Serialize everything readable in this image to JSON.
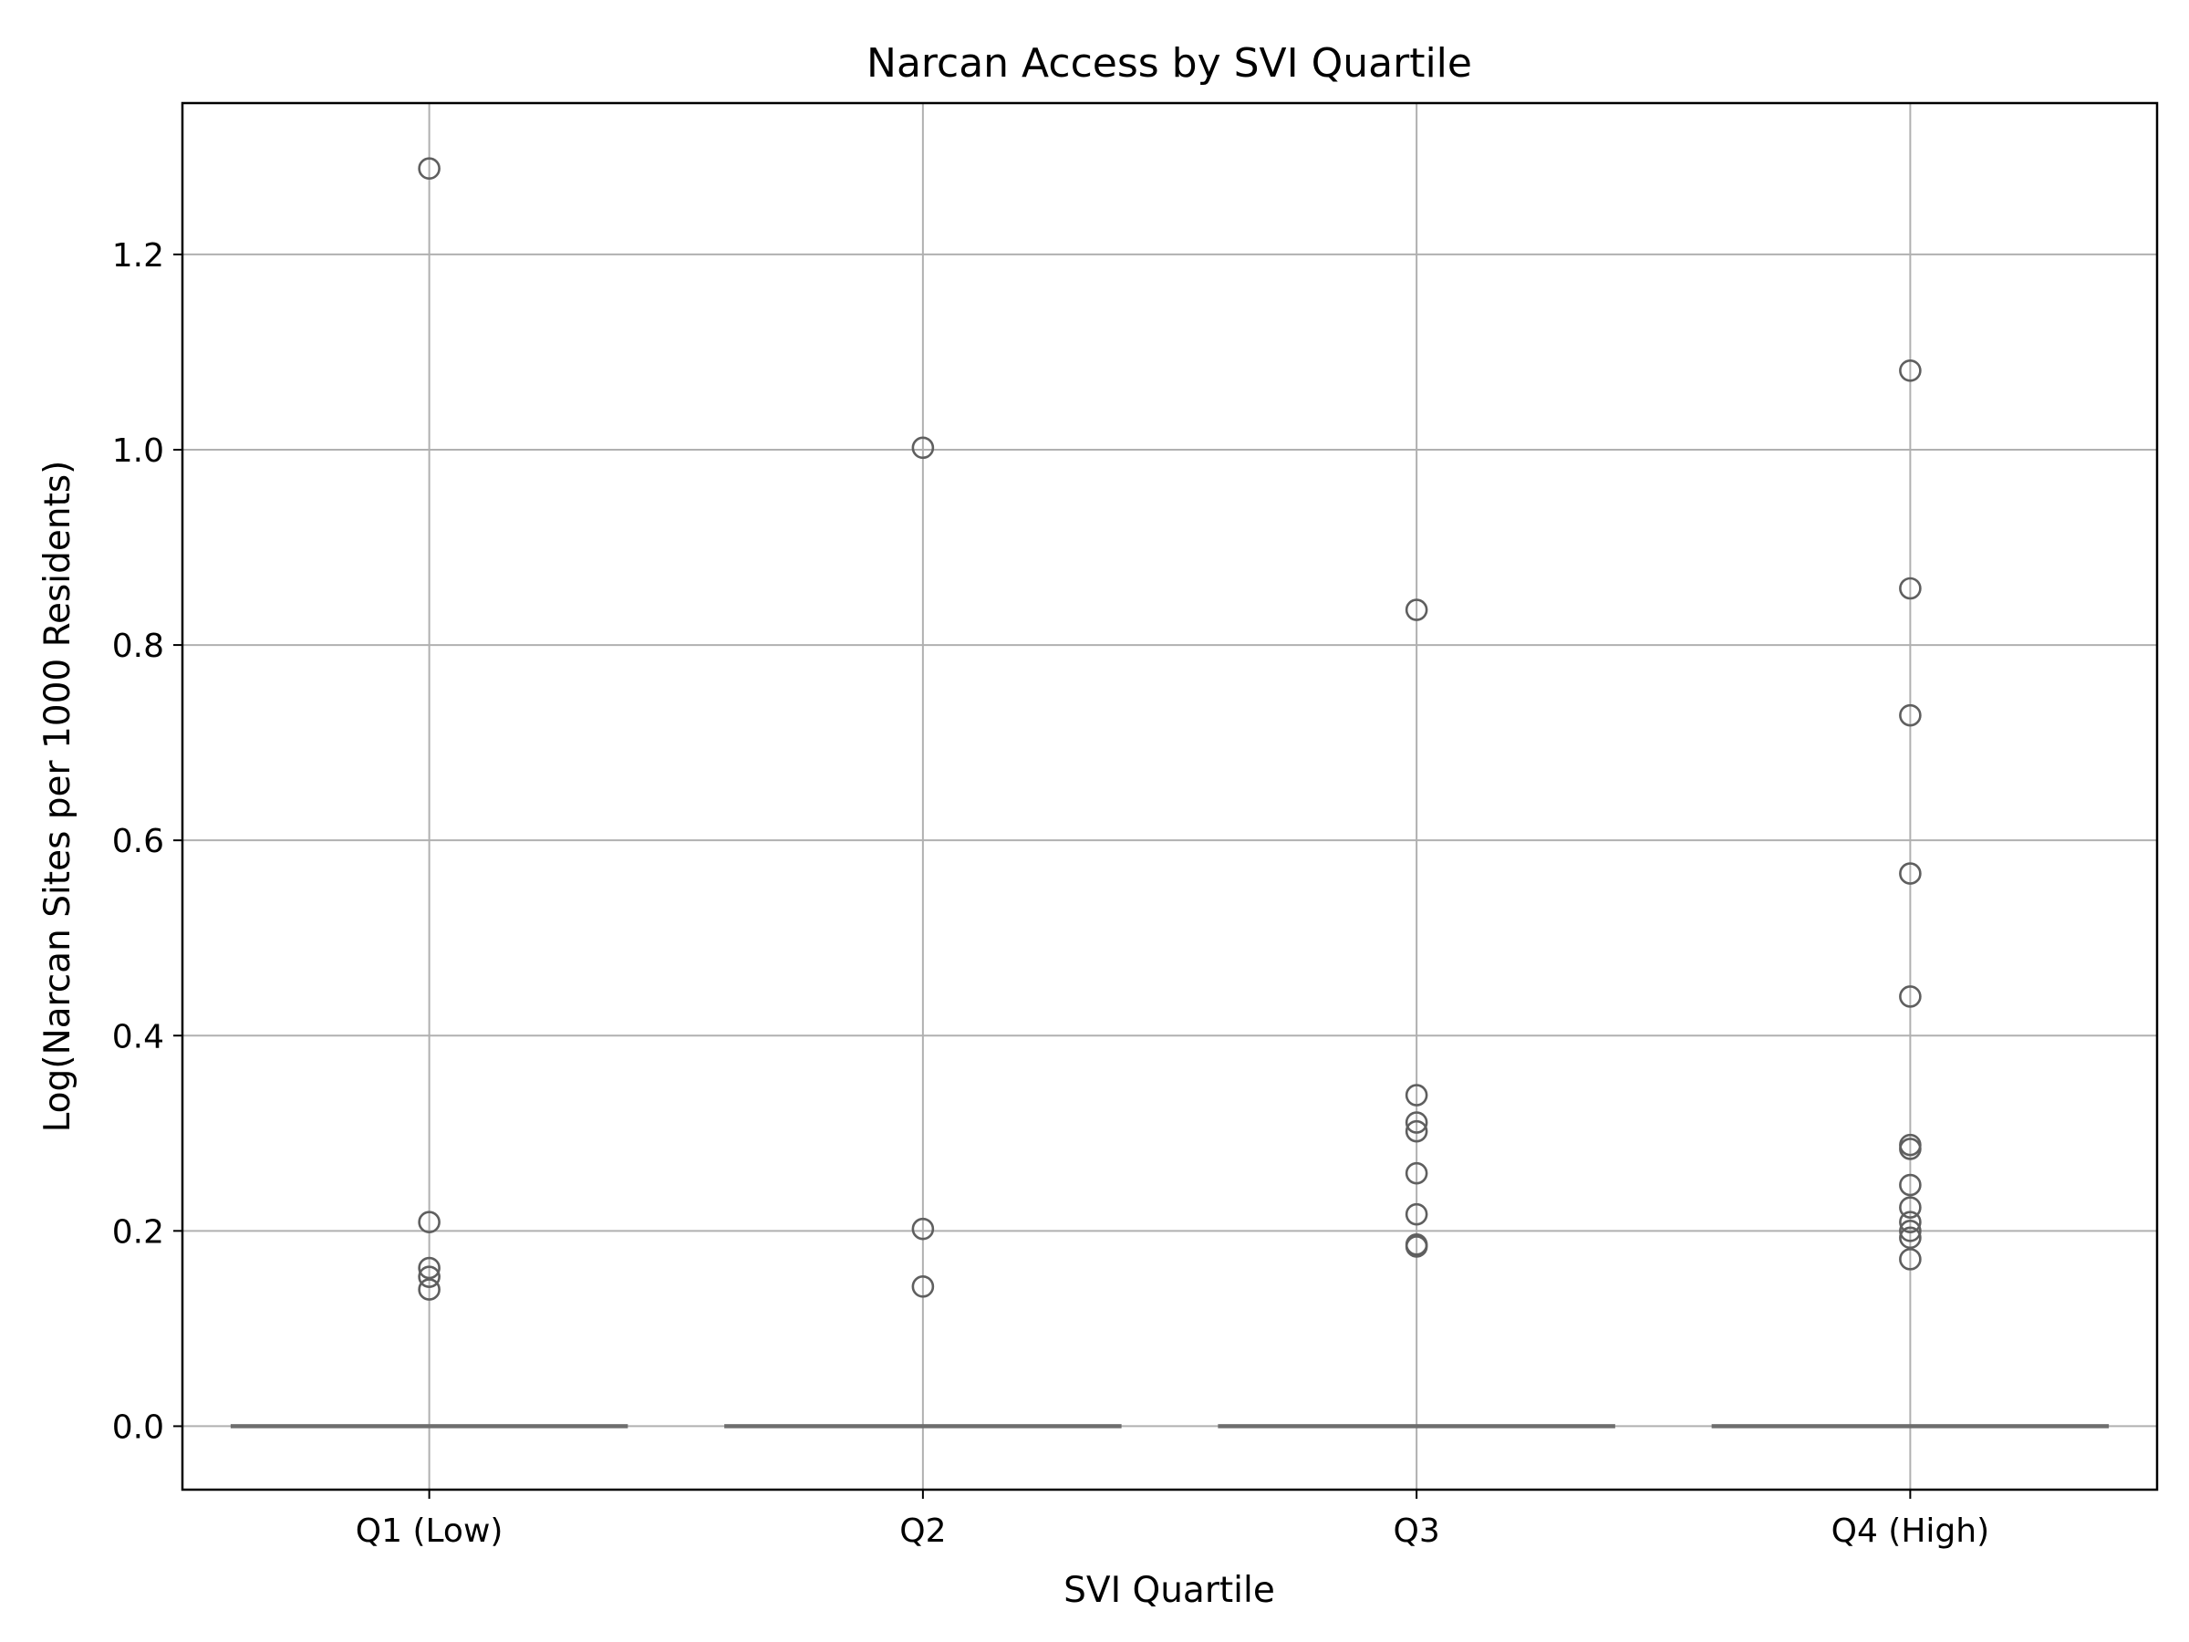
{
  "chart_data": {
    "type": "box",
    "title": "Narcan Access by SVI Quartile",
    "xlabel": "SVI Quartile",
    "ylabel": "Log(Narcan Sites per 1000 Residents)",
    "categories": [
      "Q1 (Low)",
      "Q2",
      "Q3",
      "Q4 (High)"
    ],
    "ylim": [
      -0.065,
      1.355
    ],
    "yticks": [
      0.0,
      0.2,
      0.4,
      0.6,
      0.8,
      1.0,
      1.2
    ],
    "ytick_labels": [
      "0.0",
      "0.2",
      "0.4",
      "0.6",
      "0.8",
      "1.0",
      "1.2"
    ],
    "grid": true,
    "boxes": [
      {
        "category": "Q1 (Low)",
        "q1": 0.0,
        "median": 0.0,
        "q3": 0.0,
        "whisker_low": 0.0,
        "whisker_high": 0.0
      },
      {
        "category": "Q2",
        "q1": 0.0,
        "median": 0.0,
        "q3": 0.0,
        "whisker_low": 0.0,
        "whisker_high": 0.0
      },
      {
        "category": "Q3",
        "q1": 0.0,
        "median": 0.0,
        "q3": 0.0,
        "whisker_low": 0.0,
        "whisker_high": 0.0
      },
      {
        "category": "Q4 (High)",
        "q1": 0.0,
        "median": 0.0,
        "q3": 0.0,
        "whisker_low": 0.0,
        "whisker_high": 0.0
      }
    ],
    "outliers": [
      {
        "category": "Q1 (Low)",
        "values": [
          1.288,
          0.209,
          0.162,
          0.153,
          0.14
        ]
      },
      {
        "category": "Q2",
        "values": [
          1.002,
          0.202,
          0.143
        ]
      },
      {
        "category": "Q3",
        "values": [
          0.836,
          0.339,
          0.311,
          0.302,
          0.259,
          0.217,
          0.186,
          0.184
        ]
      },
      {
        "category": "Q4 (High)",
        "values": [
          1.081,
          0.858,
          0.728,
          0.566,
          0.44,
          0.288,
          0.284,
          0.247,
          0.224,
          0.209,
          0.2,
          0.193,
          0.171
        ]
      }
    ]
  }
}
